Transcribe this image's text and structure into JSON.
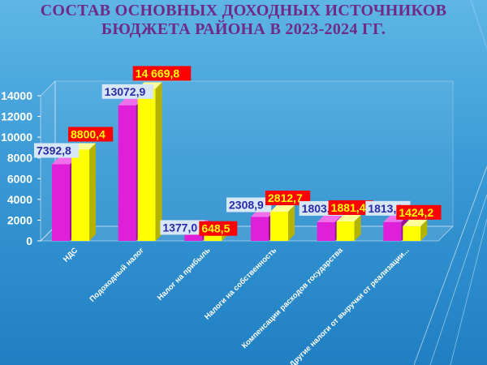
{
  "title_line1": "СОСТАВ ОСНОВНЫХ ДОХОДНЫХ ИСТОЧНИКОВ",
  "title_line2": "БЮДЖЕТА РАЙОНА В 2023-2024 ГГ.",
  "colors": {
    "series_2023": "#e020d8",
    "series_2024": "#ffff00",
    "title": "#6f2a86"
  },
  "chart_data": {
    "type": "bar",
    "categories": [
      "НДС",
      "Подоходный налог",
      "Налог на прибыль",
      "Налоги на собственность",
      "Компенсации расходов государства",
      "Другие налоги от выручки от реализации..."
    ],
    "series": [
      {
        "values": [
          7392.8,
          13072.9,
          1377.0,
          2308.9,
          1803.1,
          1813.9
        ],
        "labels": [
          "7392,8",
          "13072,9",
          "1377,0",
          "2308,9",
          "1803,1",
          "1813,9"
        ]
      },
      {
        "values": [
          8800.4,
          14669.8,
          648.5,
          2812.7,
          1881.4,
          1424.2
        ],
        "labels": [
          "8800,4",
          "14 669,8",
          "648,5",
          "2812,7",
          "1881,4",
          "1424,2"
        ]
      }
    ],
    "yticks": [
      "0",
      "2000",
      "4000",
      "6000",
      "8000",
      "10000",
      "12000",
      "14000"
    ],
    "ylim": [
      0,
      14000
    ],
    "grid": false,
    "legend": "none"
  }
}
